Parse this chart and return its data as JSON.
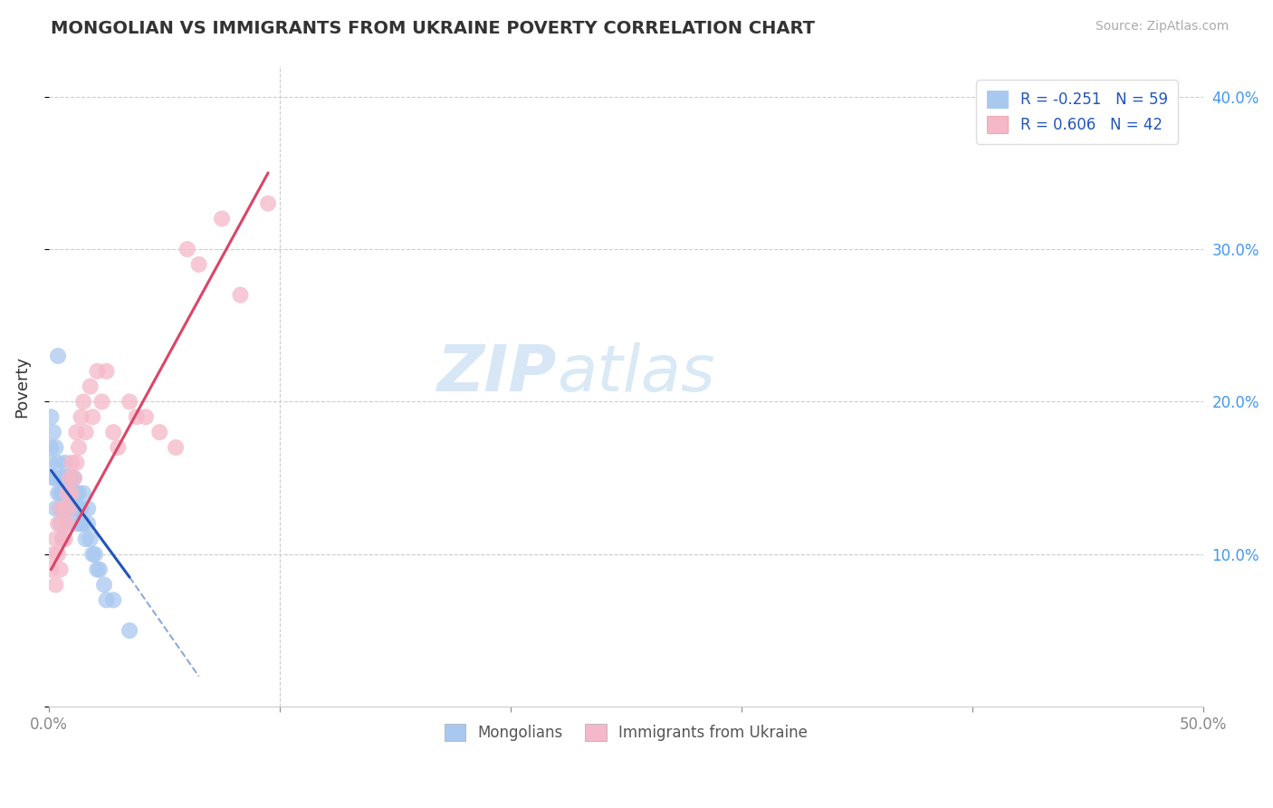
{
  "title": "MONGOLIAN VS IMMIGRANTS FROM UKRAINE POVERTY CORRELATION CHART",
  "source": "Source: ZipAtlas.com",
  "ylabel": "Poverty",
  "legend_mongolian": "R = -0.251   N = 59",
  "legend_ukraine": "R = 0.606   N = 42",
  "mongolian_color": "#a8c8f0",
  "ukraine_color": "#f5b8c8",
  "mongolian_line_color": "#2255bb",
  "ukraine_line_color": "#dd4466",
  "watermark_zip": "ZIP",
  "watermark_atlas": "atlas",
  "xlim": [
    0.0,
    0.5
  ],
  "ylim": [
    0.0,
    0.42
  ],
  "mongolians": {
    "x": [
      0.001,
      0.001,
      0.001,
      0.002,
      0.002,
      0.003,
      0.003,
      0.003,
      0.004,
      0.004,
      0.004,
      0.005,
      0.005,
      0.005,
      0.005,
      0.006,
      0.006,
      0.006,
      0.006,
      0.007,
      0.007,
      0.007,
      0.007,
      0.008,
      0.008,
      0.008,
      0.008,
      0.008,
      0.009,
      0.009,
      0.009,
      0.009,
      0.01,
      0.01,
      0.01,
      0.011,
      0.011,
      0.011,
      0.012,
      0.012,
      0.012,
      0.013,
      0.013,
      0.014,
      0.014,
      0.015,
      0.015,
      0.016,
      0.017,
      0.017,
      0.018,
      0.019,
      0.02,
      0.021,
      0.022,
      0.024,
      0.025,
      0.028,
      0.035
    ],
    "y": [
      0.16,
      0.19,
      0.17,
      0.15,
      0.18,
      0.13,
      0.15,
      0.17,
      0.14,
      0.16,
      0.23,
      0.13,
      0.15,
      0.14,
      0.12,
      0.14,
      0.15,
      0.13,
      0.11,
      0.14,
      0.15,
      0.16,
      0.13,
      0.14,
      0.15,
      0.13,
      0.12,
      0.15,
      0.14,
      0.13,
      0.15,
      0.14,
      0.14,
      0.13,
      0.15,
      0.13,
      0.14,
      0.15,
      0.12,
      0.14,
      0.13,
      0.13,
      0.14,
      0.12,
      0.13,
      0.12,
      0.14,
      0.11,
      0.12,
      0.13,
      0.11,
      0.1,
      0.1,
      0.09,
      0.09,
      0.08,
      0.07,
      0.07,
      0.05
    ]
  },
  "ukraine": {
    "x": [
      0.001,
      0.002,
      0.003,
      0.003,
      0.004,
      0.004,
      0.005,
      0.005,
      0.006,
      0.006,
      0.007,
      0.007,
      0.008,
      0.008,
      0.009,
      0.009,
      0.01,
      0.01,
      0.011,
      0.012,
      0.012,
      0.013,
      0.014,
      0.015,
      0.016,
      0.018,
      0.019,
      0.021,
      0.023,
      0.025,
      0.028,
      0.03,
      0.035,
      0.038,
      0.042,
      0.048,
      0.055,
      0.06,
      0.065,
      0.075,
      0.083,
      0.095
    ],
    "y": [
      0.09,
      0.1,
      0.08,
      0.11,
      0.1,
      0.12,
      0.09,
      0.13,
      0.11,
      0.12,
      0.11,
      0.13,
      0.12,
      0.14,
      0.13,
      0.15,
      0.14,
      0.16,
      0.15,
      0.16,
      0.18,
      0.17,
      0.19,
      0.2,
      0.18,
      0.21,
      0.19,
      0.22,
      0.2,
      0.22,
      0.18,
      0.17,
      0.2,
      0.19,
      0.19,
      0.18,
      0.17,
      0.3,
      0.29,
      0.32,
      0.27,
      0.33
    ]
  },
  "mon_line_x": [
    0.001,
    0.035
  ],
  "mon_line_y": [
    0.155,
    0.085
  ],
  "ukr_line_x": [
    0.001,
    0.095
  ],
  "ukr_line_y": [
    0.09,
    0.35
  ]
}
